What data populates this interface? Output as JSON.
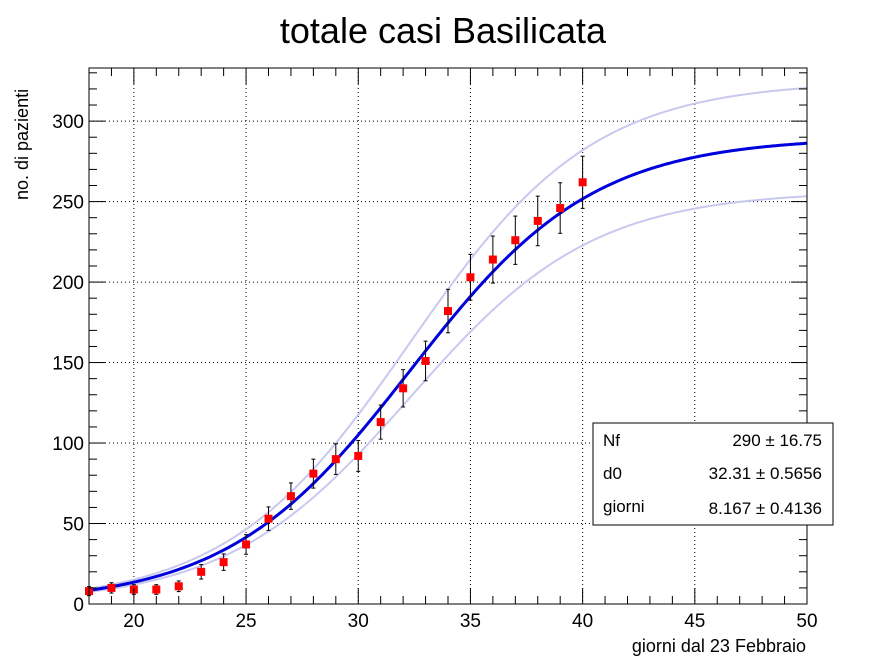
{
  "chart_data": {
    "type": "scatter",
    "title": "totale casi Basilicata",
    "xlabel": "giorni dal 23 Febbraio",
    "ylabel": "no. di pazienti",
    "xlim": [
      18,
      50
    ],
    "ylim": [
      0,
      333
    ],
    "x_ticks": [
      20,
      25,
      30,
      35,
      40,
      45,
      50
    ],
    "y_ticks": [
      0,
      50,
      100,
      150,
      200,
      250,
      300
    ],
    "grid": true,
    "colors": {
      "points": "#ff0000",
      "fit": "#0000dd",
      "band": "#c8c8f0",
      "errorbar": "#000000"
    },
    "points": {
      "x": [
        18,
        19,
        20,
        21,
        22,
        23,
        24,
        25,
        26,
        27,
        28,
        29,
        30,
        31,
        32,
        33,
        34,
        35,
        36,
        37,
        38,
        39,
        40
      ],
      "y": [
        8,
        10,
        9,
        9,
        11,
        20,
        26,
        37,
        53,
        67,
        81,
        90,
        92,
        113,
        134,
        151,
        182,
        203,
        214,
        226,
        238,
        246,
        262
      ],
      "yerr": [
        2.8,
        3.2,
        3,
        3,
        3.3,
        4.5,
        5.1,
        6.1,
        7.3,
        8.2,
        9,
        9.5,
        9.6,
        10.6,
        11.6,
        12.3,
        13.5,
        14.2,
        14.6,
        15,
        15.4,
        15.7,
        16.2
      ]
    },
    "fit": {
      "type": "logistic",
      "Nf": 290,
      "d0": 32.31,
      "giorni": 8.167,
      "band_upper_factor": 1.12,
      "band_lower_factor": 0.885
    },
    "stats_box": [
      {
        "name": "Nf",
        "value": "290 ± 16.75"
      },
      {
        "name": "d0",
        "value": "32.31 ± 0.5656"
      },
      {
        "name": "giorni",
        "value": "8.167 ± 0.4136"
      }
    ]
  }
}
